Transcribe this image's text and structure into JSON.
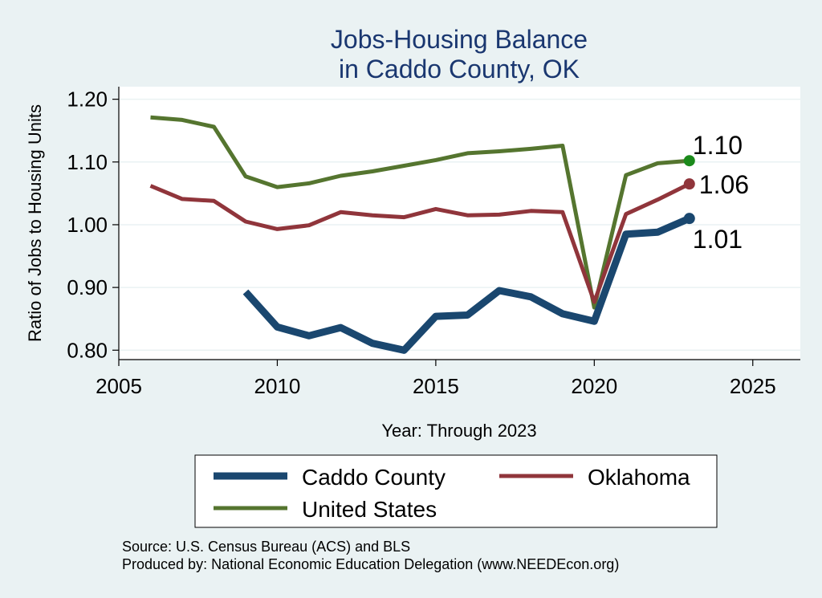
{
  "chart_data": {
    "type": "line",
    "title": [
      "Jobs-Housing Balance",
      "in Caddo County, OK"
    ],
    "xlabel": "Year: Through 2023",
    "ylabel": "Ratio of Jobs to Housing Units",
    "xlim": [
      2005,
      2026.5
    ],
    "ylim": [
      0.785,
      1.22
    ],
    "x_ticks": [
      2005,
      2010,
      2015,
      2020,
      2025
    ],
    "y_ticks": [
      0.8,
      0.9,
      1.0,
      1.1,
      1.2
    ],
    "y_tick_labels": [
      "0.80",
      "0.90",
      "1.00",
      "1.10",
      "1.20"
    ],
    "grid": true,
    "series": [
      {
        "name": "Caddo County",
        "color": "#1a476f",
        "x": [
          2009,
          2010,
          2011,
          2012,
          2013,
          2014,
          2015,
          2016,
          2017,
          2018,
          2019,
          2020,
          2021,
          2022,
          2023
        ],
        "values": [
          0.893,
          0.837,
          0.823,
          0.836,
          0.811,
          0.8,
          0.854,
          0.856,
          0.895,
          0.885,
          0.858,
          0.846,
          0.985,
          0.988,
          1.01
        ],
        "end_label": "1.01"
      },
      {
        "name": "Oklahoma",
        "color": "#90353b",
        "x": [
          2006,
          2007,
          2008,
          2009,
          2010,
          2011,
          2012,
          2013,
          2014,
          2015,
          2016,
          2017,
          2018,
          2019,
          2020,
          2021,
          2022,
          2023
        ],
        "values": [
          1.062,
          1.041,
          1.038,
          1.005,
          0.993,
          0.999,
          1.02,
          1.015,
          1.012,
          1.025,
          1.015,
          1.016,
          1.022,
          1.02,
          0.877,
          1.017,
          1.04,
          1.065
        ],
        "end_label": "1.06"
      },
      {
        "name": "United States",
        "color": "#55752f",
        "x": [
          2006,
          2007,
          2008,
          2009,
          2010,
          2011,
          2012,
          2013,
          2014,
          2015,
          2016,
          2017,
          2018,
          2019,
          2020,
          2021,
          2022,
          2023
        ],
        "values": [
          1.171,
          1.167,
          1.156,
          1.077,
          1.06,
          1.066,
          1.078,
          1.085,
          1.094,
          1.103,
          1.114,
          1.117,
          1.121,
          1.126,
          0.868,
          1.079,
          1.098,
          1.102
        ],
        "end_label": "1.10"
      }
    ],
    "end_marker_colors": [
      "#1a476f",
      "#90353b",
      "#1b8a1b"
    ],
    "legend": {
      "placement": "bottom",
      "entries": [
        "Caddo County",
        "Oklahoma",
        "United States"
      ]
    },
    "notes": [
      "Source: U.S. Census Bureau (ACS) and BLS",
      "Produced by: National Economic Education Delegation (www.NEEDEcon.org)"
    ]
  }
}
